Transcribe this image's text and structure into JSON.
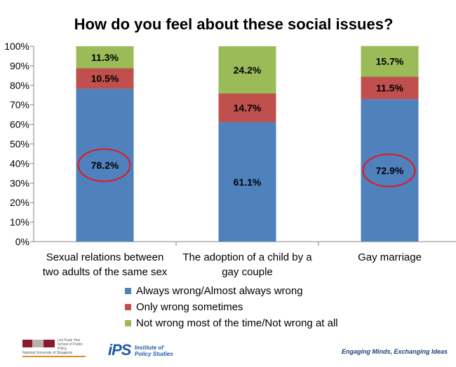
{
  "chart_data": {
    "type": "bar",
    "stacked": true,
    "title": "How do you feel about these social issues?",
    "categories": [
      "Sexual relations between two adults of the same sex",
      "The adoption of a child by a gay couple",
      "Gay marriage"
    ],
    "category_lines": [
      [
        "Sexual relations between",
        "two adults of the same sex"
      ],
      [
        "The adoption of a child by a",
        "gay couple"
      ],
      [
        "Gay marriage"
      ]
    ],
    "series": [
      {
        "name": "Always wrong/Almost always wrong",
        "values": [
          78.2,
          61.1,
          72.9
        ],
        "labels": [
          "78.2%",
          "61.1%",
          "72.9%"
        ],
        "color": "#4f81bd"
      },
      {
        "name": "Only wrong sometimes",
        "values": [
          10.5,
          14.7,
          11.5
        ],
        "labels": [
          "10.5%",
          "14.7%",
          "11.5%"
        ],
        "color": "#c0504d"
      },
      {
        "name": "Not wrong most of the time/Not wrong at all",
        "values": [
          11.3,
          24.2,
          15.7
        ],
        "labels": [
          "11.3%",
          "24.2%",
          "15.7%"
        ],
        "color": "#9bbb59"
      }
    ],
    "yticks": [
      "0%",
      "10%",
      "20%",
      "30%",
      "40%",
      "50%",
      "60%",
      "70%",
      "80%",
      "90%",
      "100%"
    ],
    "ylim": [
      0,
      100
    ],
    "legend_position": "bottom",
    "highlighted": [
      "78.2%",
      "72.9%"
    ],
    "highlight_color": "#e8141c"
  },
  "footer": {
    "lky_name": "Lee Kuan Yew",
    "lky_school": "School of Public Policy",
    "nus": "National University of Singapore",
    "ips_mark": "iPS",
    "ips_line1": "Institute of",
    "ips_line2": "Policy Studies",
    "tagline": "Engaging Minds, Exchanging Ideas"
  }
}
